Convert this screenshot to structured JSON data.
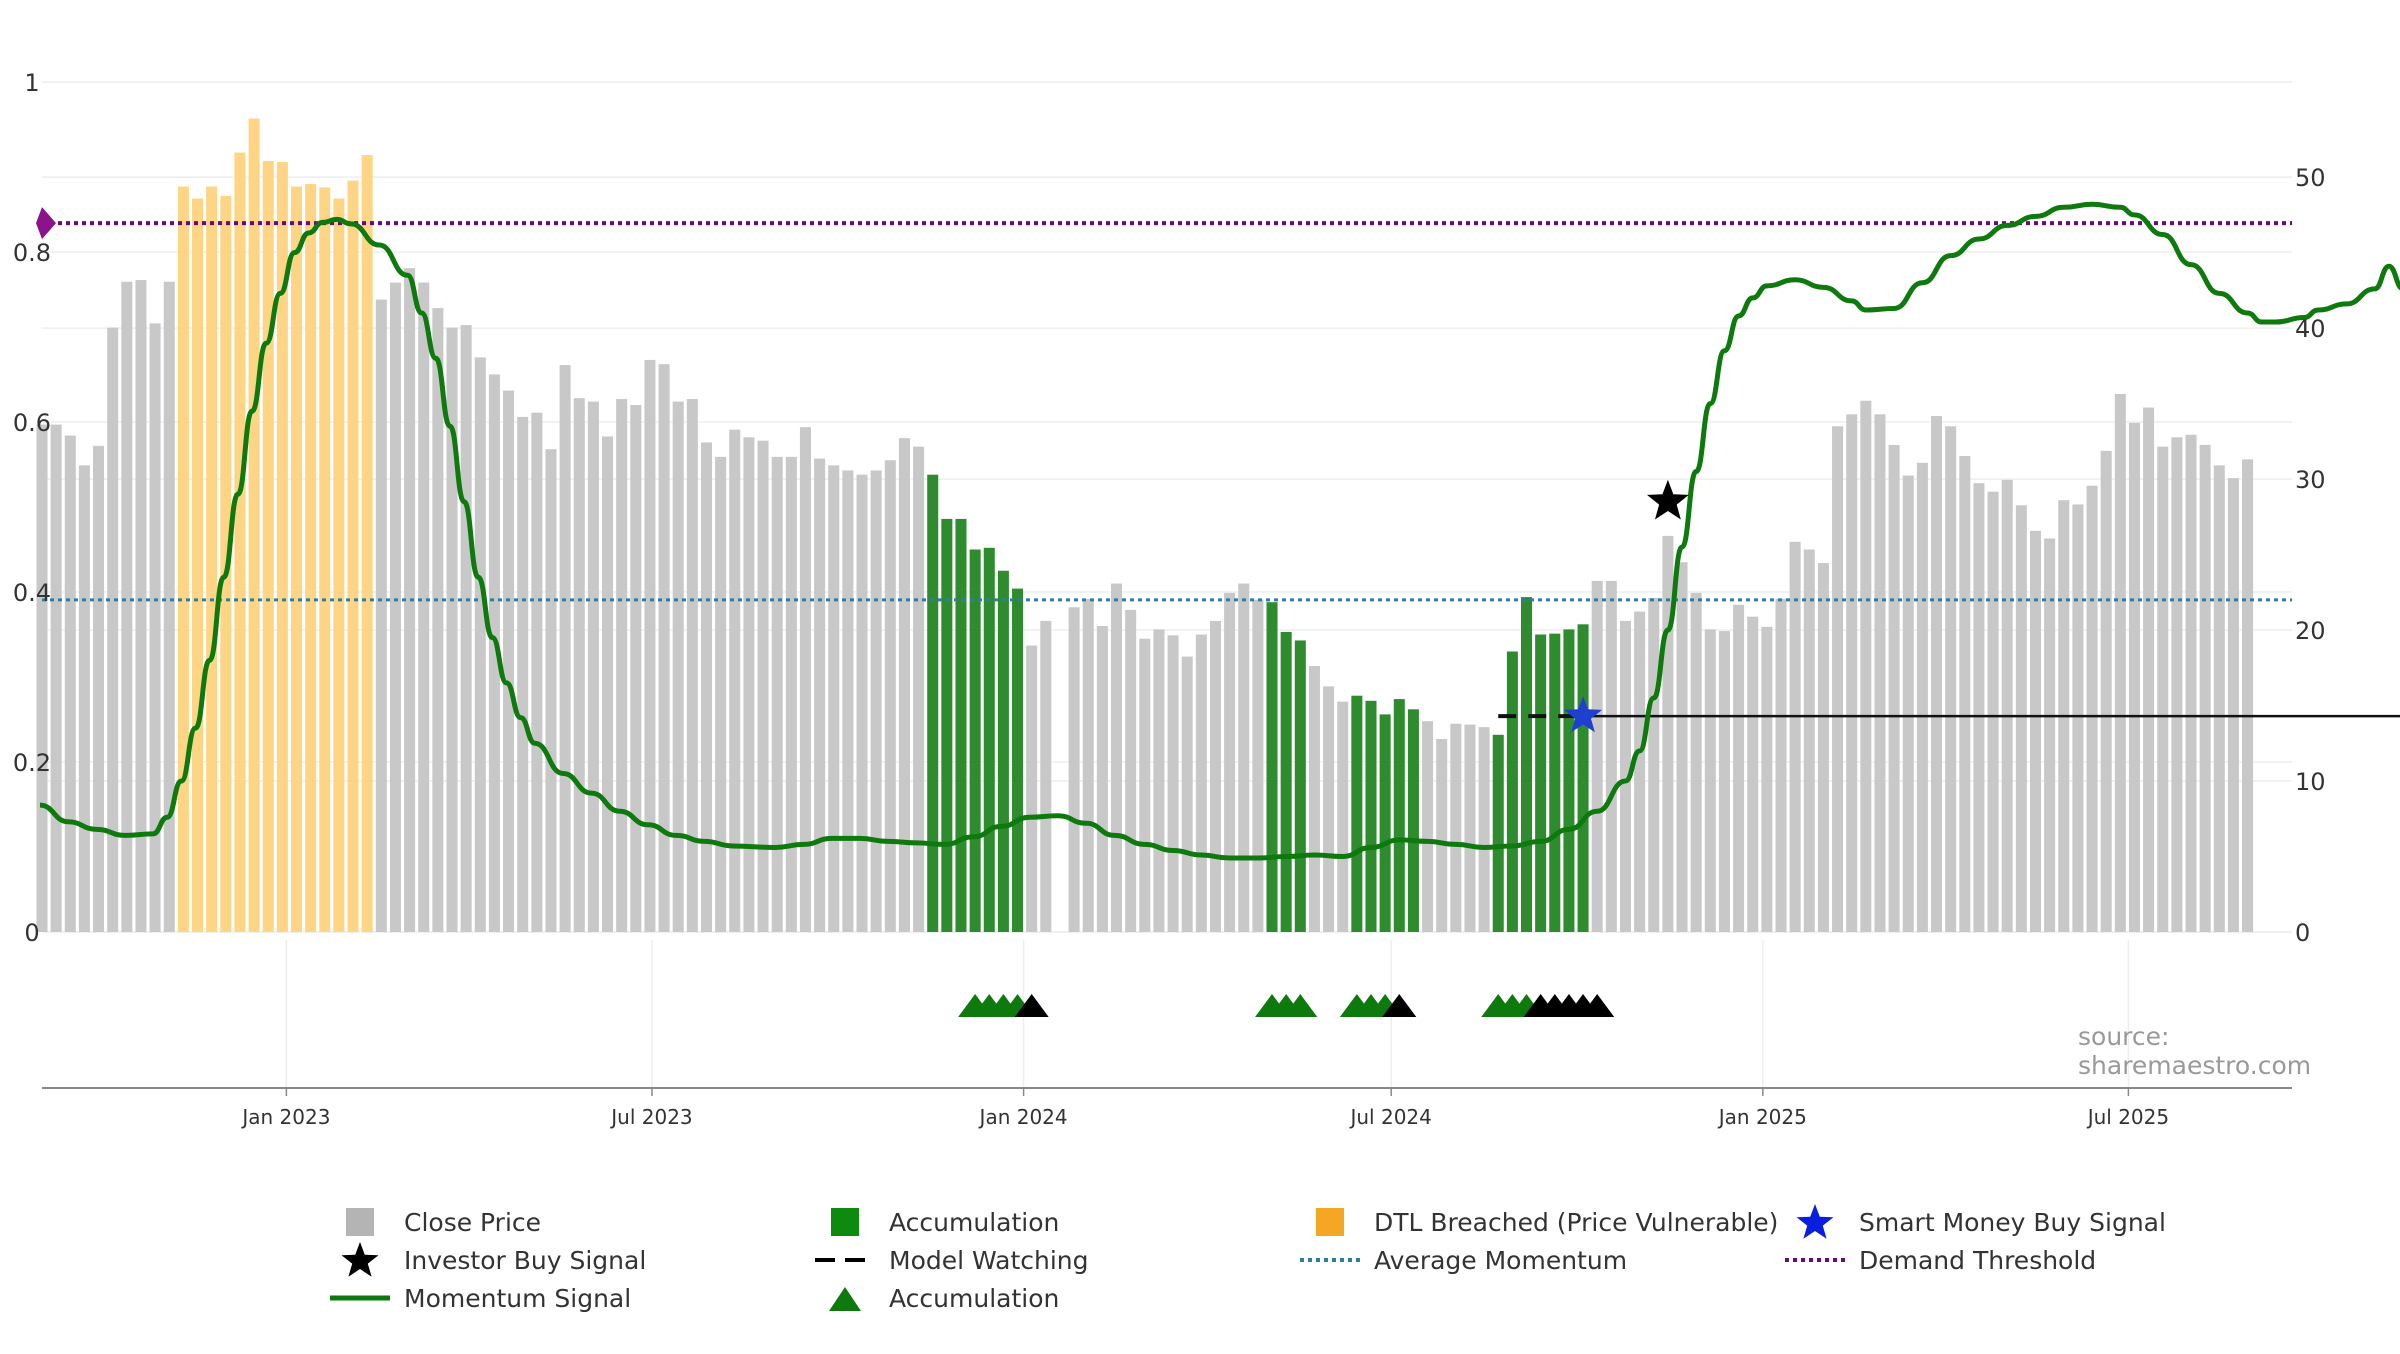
{
  "chart_data": {
    "type": "bar",
    "source": "source: sharemaestro.com",
    "left_axis": {
      "range": [
        0,
        1
      ],
      "ticks": [
        "0",
        "0.2",
        "0.4",
        "0.6",
        "0.8",
        "1"
      ]
    },
    "right_axis": {
      "range": [
        0,
        56.3
      ],
      "ticks": [
        "0",
        "10",
        "20",
        "30",
        "40",
        "50"
      ]
    },
    "x_ticks": [
      {
        "date": "2023-01-01",
        "label": "Jan 2023"
      },
      {
        "date": "2023-07-01",
        "label": "Jul 2023"
      },
      {
        "date": "2024-01-01",
        "label": "Jan 2024"
      },
      {
        "date": "2024-07-01",
        "label": "Jul 2024"
      },
      {
        "date": "2025-01-01",
        "label": "Jan 2025"
      },
      {
        "date": "2025-07-01",
        "label": "Jul 2025"
      }
    ],
    "x_range": [
      "2022-09-02",
      "2025-09-20"
    ],
    "bars": {
      "start_date": "2022-09-02",
      "step_days": 7,
      "values": [
        0.597,
        0.597,
        0.584,
        0.549,
        0.572,
        0.711,
        0.765,
        0.767,
        0.716,
        0.765,
        0.877,
        0.863,
        0.877,
        0.866,
        0.917,
        0.957,
        0.907,
        0.906,
        0.877,
        0.88,
        0.876,
        0.863,
        0.884,
        0.914,
        0.744,
        0.764,
        0.781,
        0.764,
        0.734,
        0.711,
        0.714,
        0.676,
        0.656,
        0.637,
        0.606,
        0.611,
        0.568,
        0.667,
        0.628,
        0.624,
        0.583,
        0.627,
        0.62,
        0.673,
        0.668,
        0.624,
        0.627,
        0.576,
        0.559,
        0.591,
        0.582,
        0.578,
        0.559,
        0.559,
        0.594,
        0.557,
        0.549,
        0.543,
        0.538,
        0.543,
        0.555,
        0.581,
        0.571,
        0.538,
        0.486,
        0.486,
        0.45,
        0.452,
        0.425,
        0.404,
        0.337,
        0.366,
        null,
        0.382,
        0.392,
        0.36,
        0.41,
        0.379,
        0.345,
        0.356,
        0.349,
        0.324,
        0.35,
        0.366,
        0.399,
        0.41,
        0.391,
        0.388,
        0.353,
        0.343,
        0.313,
        0.289,
        0.271,
        0.278,
        0.272,
        0.256,
        0.274,
        0.262,
        0.248,
        0.227,
        0.245,
        0.244,
        0.241,
        0.232,
        0.33,
        0.394,
        0.35,
        0.351,
        0.356,
        0.362,
        0.413,
        0.413,
        0.366,
        0.377,
        0.393,
        0.466,
        0.435,
        0.399,
        0.356,
        0.354,
        0.385,
        0.371,
        0.359,
        0.392,
        0.459,
        0.45,
        0.434,
        0.595,
        0.609,
        0.625,
        0.609,
        0.573,
        0.537,
        0.552,
        0.607,
        0.595,
        0.56,
        0.528,
        0.518,
        0.532,
        0.502,
        0.472,
        0.463,
        0.508,
        0.503,
        0.525,
        0.566,
        0.633,
        0.599,
        0.617,
        0.571,
        0.582,
        0.585,
        0.573,
        0.549,
        0.534,
        0.556
      ],
      "colors": {
        "close_price": "#c8c8c8",
        "accumulation": "#2e8b2e",
        "dtl_breached": "#fdd585"
      },
      "segments": [
        {
          "type": "dtl_breached",
          "from": "2022-11-11",
          "to": "2023-02-10"
        },
        {
          "type": "accumulation",
          "from": "2023-11-17",
          "to": "2023-12-29"
        },
        {
          "type": "accumulation",
          "from": "2024-05-03",
          "to": "2024-05-17"
        },
        {
          "type": "accumulation",
          "from": "2024-06-14",
          "to": "2024-07-12"
        },
        {
          "type": "accumulation",
          "from": "2024-08-23",
          "to": "2024-10-04"
        }
      ]
    },
    "momentum_signal": {
      "color": "#0e7a0e",
      "axis": "right",
      "points": [
        [
          "2022-09-01",
          8.4
        ],
        [
          "2022-09-15",
          7.3
        ],
        [
          "2022-09-29",
          6.8
        ],
        [
          "2022-10-13",
          6.4
        ],
        [
          "2022-10-27",
          6.5
        ],
        [
          "2022-11-03",
          7.6
        ],
        [
          "2022-11-10",
          10.0
        ],
        [
          "2022-11-17",
          13.5
        ],
        [
          "2022-11-24",
          18.0
        ],
        [
          "2022-12-01",
          23.5
        ],
        [
          "2022-12-08",
          29.0
        ],
        [
          "2022-12-15",
          34.5
        ],
        [
          "2022-12-22",
          39.0
        ],
        [
          "2022-12-29",
          42.3
        ],
        [
          "2023-01-05",
          45.0
        ],
        [
          "2023-01-12",
          46.3
        ],
        [
          "2023-01-19",
          47.0
        ],
        [
          "2023-01-26",
          47.2
        ],
        [
          "2023-02-02",
          46.9
        ],
        [
          "2023-02-16",
          45.5
        ],
        [
          "2023-03-02",
          43.5
        ],
        [
          "2023-03-09",
          41.0
        ],
        [
          "2023-03-16",
          38.0
        ],
        [
          "2023-03-23",
          33.5
        ],
        [
          "2023-03-30",
          28.5
        ],
        [
          "2023-04-06",
          23.5
        ],
        [
          "2023-04-13",
          19.5
        ],
        [
          "2023-04-20",
          16.5
        ],
        [
          "2023-04-27",
          14.2
        ],
        [
          "2023-05-04",
          12.5
        ],
        [
          "2023-05-18",
          10.5
        ],
        [
          "2023-06-01",
          9.2
        ],
        [
          "2023-06-15",
          8.0
        ],
        [
          "2023-06-29",
          7.1
        ],
        [
          "2023-07-13",
          6.4
        ],
        [
          "2023-07-27",
          6.0
        ],
        [
          "2023-08-10",
          5.7
        ],
        [
          "2023-08-31",
          5.6
        ],
        [
          "2023-09-14",
          5.8
        ],
        [
          "2023-09-28",
          6.2
        ],
        [
          "2023-10-12",
          6.2
        ],
        [
          "2023-10-26",
          6.0
        ],
        [
          "2023-11-09",
          5.9
        ],
        [
          "2023-11-23",
          5.8
        ],
        [
          "2023-12-07",
          6.3
        ],
        [
          "2023-12-21",
          7.0
        ],
        [
          "2024-01-04",
          7.6
        ],
        [
          "2024-01-18",
          7.7
        ],
        [
          "2024-02-01",
          7.2
        ],
        [
          "2024-02-15",
          6.4
        ],
        [
          "2024-03-01",
          5.8
        ],
        [
          "2024-03-15",
          5.4
        ],
        [
          "2024-03-29",
          5.1
        ],
        [
          "2024-04-12",
          4.9
        ],
        [
          "2024-04-26",
          4.9
        ],
        [
          "2024-05-10",
          5.0
        ],
        [
          "2024-05-24",
          5.1
        ],
        [
          "2024-06-07",
          5.0
        ],
        [
          "2024-06-21",
          5.6
        ],
        [
          "2024-07-05",
          6.1
        ],
        [
          "2024-07-19",
          6.0
        ],
        [
          "2024-08-02",
          5.8
        ],
        [
          "2024-08-16",
          5.6
        ],
        [
          "2024-08-30",
          5.7
        ],
        [
          "2024-09-13",
          6.0
        ],
        [
          "2024-09-27",
          6.8
        ],
        [
          "2024-10-11",
          8.0
        ],
        [
          "2024-10-25",
          10.0
        ],
        [
          "2024-11-01",
          12.0
        ],
        [
          "2024-11-08",
          15.5
        ],
        [
          "2024-11-15",
          20.0
        ],
        [
          "2024-11-22",
          25.5
        ],
        [
          "2024-11-29",
          30.5
        ],
        [
          "2024-12-06",
          35.0
        ],
        [
          "2024-12-13",
          38.5
        ],
        [
          "2024-12-20",
          40.8
        ],
        [
          "2024-12-27",
          42.0
        ],
        [
          "2025-01-03",
          42.8
        ],
        [
          "2025-01-17",
          43.2
        ],
        [
          "2025-01-31",
          42.7
        ],
        [
          "2025-02-14",
          41.8
        ],
        [
          "2025-02-21",
          41.2
        ],
        [
          "2025-03-07",
          41.3
        ],
        [
          "2025-03-21",
          43.0
        ],
        [
          "2025-04-04",
          44.8
        ],
        [
          "2025-04-18",
          45.9
        ],
        [
          "2025-05-02",
          46.8
        ],
        [
          "2025-05-16",
          47.4
        ],
        [
          "2025-05-30",
          48.0
        ],
        [
          "2025-06-13",
          48.2
        ],
        [
          "2025-06-27",
          48.0
        ],
        [
          "2025-07-04",
          47.5
        ],
        [
          "2025-07-18",
          46.2
        ],
        [
          "2025-08-01",
          44.2
        ],
        [
          "2025-08-15",
          42.3
        ],
        [
          "2025-08-29",
          41.0
        ],
        [
          "2025-09-05",
          40.4
        ],
        [
          "2025-09-12",
          40.4
        ],
        [
          "2025-09-26",
          40.7
        ],
        [
          "2025-10-03",
          41.2
        ],
        [
          "2025-10-17",
          41.6
        ],
        [
          "2025-10-31",
          42.6
        ],
        [
          "2025-11-07",
          44.1
        ],
        [
          "2025-11-14",
          42.6
        ],
        [
          "2025-11-28",
          42.4
        ],
        [
          "2025-12-05",
          42.2
        ]
      ]
    },
    "average_momentum": {
      "value": 22.0,
      "axis": "right",
      "color": "#2d7fa0"
    },
    "demand_threshold": {
      "value": 0.834,
      "axis": "left",
      "color": "#6a0a7a"
    },
    "model_watching": {
      "from": "2024-08-23",
      "to": "2025-11-28",
      "value": 0.254,
      "axis": "left",
      "color": "#111111"
    },
    "investor_buy_signal": {
      "date": "2024-11-15",
      "value": 28.5,
      "axis": "right"
    },
    "smart_money_buy_signal": {
      "date": "2024-10-04",
      "value": 0.254,
      "axis": "left"
    },
    "triangle_markers": [
      {
        "date": "2023-12-08",
        "color": "green"
      },
      {
        "date": "2023-12-15",
        "color": "green"
      },
      {
        "date": "2023-12-22",
        "color": "green"
      },
      {
        "date": "2023-12-29",
        "color": "green"
      },
      {
        "date": "2024-01-05",
        "color": "black"
      },
      {
        "date": "2024-05-03",
        "color": "green"
      },
      {
        "date": "2024-05-10",
        "color": "green"
      },
      {
        "date": "2024-05-17",
        "color": "green"
      },
      {
        "date": "2024-06-14",
        "color": "green"
      },
      {
        "date": "2024-06-21",
        "color": "green"
      },
      {
        "date": "2024-06-28",
        "color": "green"
      },
      {
        "date": "2024-07-05",
        "color": "black"
      },
      {
        "date": "2024-08-23",
        "color": "green"
      },
      {
        "date": "2024-08-30",
        "color": "green"
      },
      {
        "date": "2024-09-06",
        "color": "green"
      },
      {
        "date": "2024-09-13",
        "color": "black"
      },
      {
        "date": "2024-09-20",
        "color": "black"
      },
      {
        "date": "2024-09-27",
        "color": "black"
      },
      {
        "date": "2024-10-04",
        "color": "black"
      },
      {
        "date": "2024-10-11",
        "color": "black"
      }
    ],
    "legend": [
      {
        "key": "close_price",
        "label": "Close Price"
      },
      {
        "key": "accumulation_bar",
        "label": "Accumulation"
      },
      {
        "key": "dtl_breached",
        "label": "DTL Breached (Price Vulnerable)"
      },
      {
        "key": "smart_money",
        "label": "Smart Money Buy Signal"
      },
      {
        "key": "investor_buy",
        "label": "Investor Buy Signal"
      },
      {
        "key": "model_watching",
        "label": "Model Watching"
      },
      {
        "key": "average_momentum",
        "label": "Average Momentum"
      },
      {
        "key": "demand_threshold",
        "label": "Demand Threshold"
      },
      {
        "key": "momentum_signal",
        "label": "Momentum Signal"
      },
      {
        "key": "accumulation_marker",
        "label": "Accumulation"
      }
    ]
  }
}
